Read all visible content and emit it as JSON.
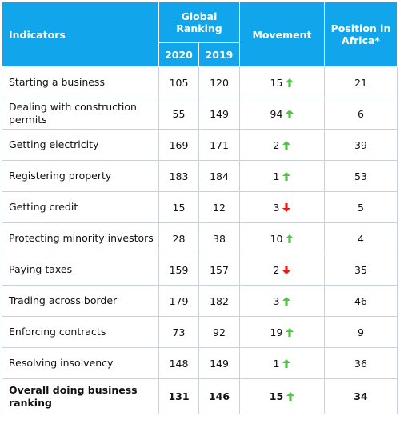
{
  "header": {
    "indicators": "Indicators",
    "global_ranking": "Global Ranking",
    "movement": "Movement",
    "position_in_africa": "Position in Africa*",
    "year_2020": "2020",
    "year_2019": "2019"
  },
  "colors": {
    "header_bg": "#11a6ec",
    "up_arrow": "#55c24a",
    "down_arrow": "#e32119"
  },
  "rows": [
    {
      "label": "Starting a business",
      "r2020": "105",
      "r2019": "120",
      "movement": "15",
      "direction": "up",
      "africa": "21"
    },
    {
      "label": "Dealing with construction permits",
      "r2020": "55",
      "r2019": "149",
      "movement": "94",
      "direction": "up",
      "africa": "6"
    },
    {
      "label": "Getting electricity",
      "r2020": "169",
      "r2019": "171",
      "movement": "2",
      "direction": "up",
      "africa": "39"
    },
    {
      "label": "Registering property",
      "r2020": "183",
      "r2019": "184",
      "movement": "1",
      "direction": "up",
      "africa": "53"
    },
    {
      "label": "Getting credit",
      "r2020": "15",
      "r2019": "12",
      "movement": "3",
      "direction": "down",
      "africa": "5"
    },
    {
      "label": "Protecting minority investors",
      "r2020": "28",
      "r2019": "38",
      "movement": "10",
      "direction": "up",
      "africa": "4"
    },
    {
      "label": "Paying taxes",
      "r2020": "159",
      "r2019": "157",
      "movement": "2",
      "direction": "down",
      "africa": "35"
    },
    {
      "label": "Trading across border",
      "r2020": "179",
      "r2019": "182",
      "movement": "3",
      "direction": "up",
      "africa": "46"
    },
    {
      "label": "Enforcing contracts",
      "r2020": "73",
      "r2019": "92",
      "movement": "19",
      "direction": "up",
      "africa": "9"
    },
    {
      "label": "Resolving insolvency",
      "r2020": "148",
      "r2019": "149",
      "movement": "1",
      "direction": "up",
      "africa": "36"
    }
  ],
  "total": {
    "label": "Overall doing business ranking",
    "r2020": "131",
    "r2019": "146",
    "movement": "15",
    "direction": "up",
    "africa": "34"
  }
}
